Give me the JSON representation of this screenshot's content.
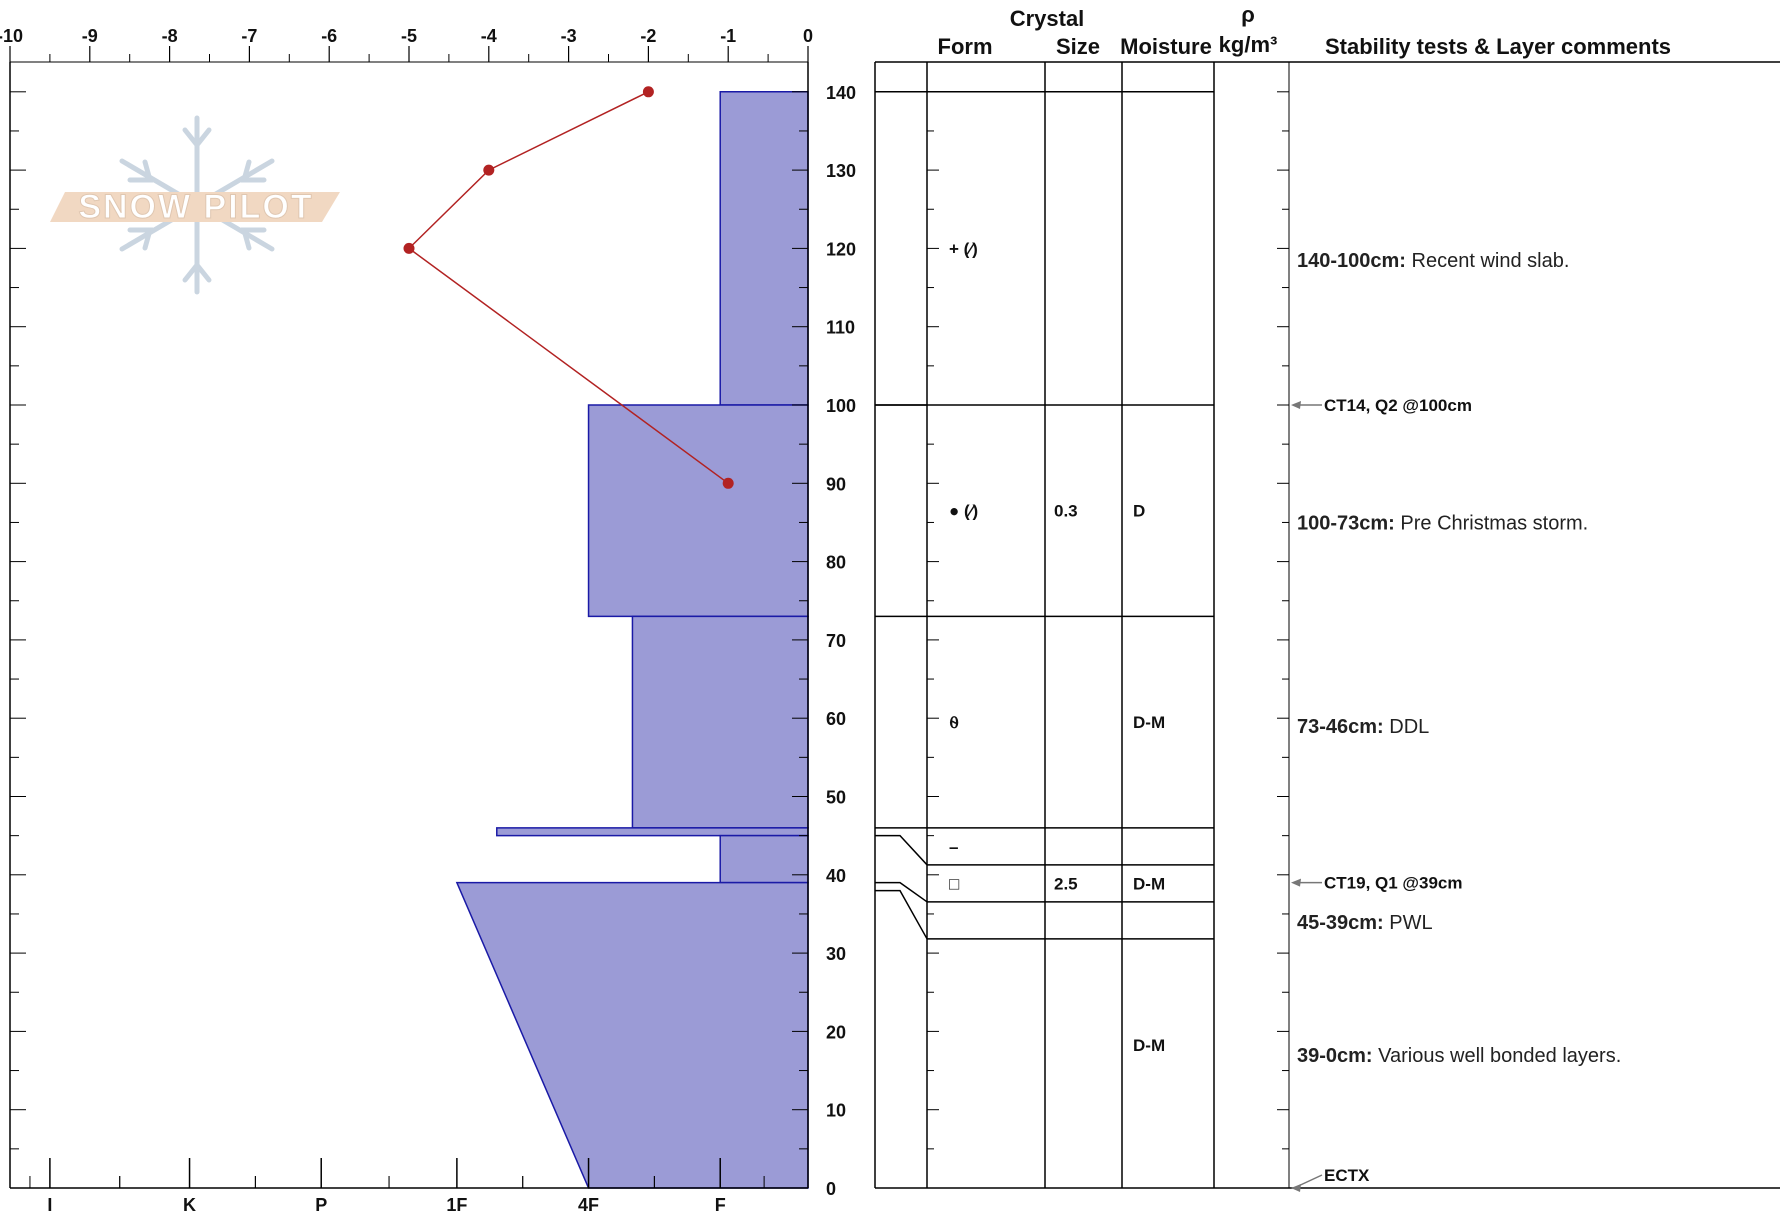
{
  "chart_data": {
    "type": "snow-profile",
    "title": "",
    "top_axis": {
      "xlim": [
        -10,
        0
      ],
      "ticks": [
        "-10",
        "-9",
        "-8",
        "-7",
        "-6",
        "-5",
        "-4",
        "-3",
        "-2",
        "-1",
        "0"
      ]
    },
    "bottom_axis": {
      "labels": [
        "I",
        "K",
        "P",
        "1F",
        "4F",
        "F"
      ],
      "hardness_positions": [
        -9.5,
        -7.75,
        -6.1,
        -4.4,
        -2.75,
        -1.1
      ]
    },
    "y_axis": {
      "ylim": [
        0,
        145
      ],
      "ticks": [
        "140",
        "130",
        "120",
        "110",
        "100",
        "90",
        "80",
        "70",
        "60",
        "50",
        "40",
        "30",
        "20",
        "10",
        "0"
      ]
    },
    "temperature_profile": {
      "series_color": "#b22222",
      "points": [
        {
          "depth": 140,
          "temp": -2
        },
        {
          "depth": 130,
          "temp": -4
        },
        {
          "depth": 120,
          "temp": -5
        },
        {
          "depth": 90,
          "temp": -1
        }
      ]
    },
    "hardness_layers": [
      {
        "top": 140,
        "bottom": 100,
        "hardness_top": -1.1,
        "hardness_bottom": -1.1
      },
      {
        "top": 100,
        "bottom": 73,
        "hardness_top": -2.75,
        "hardness_bottom": -2.75
      },
      {
        "top": 73,
        "bottom": 46,
        "hardness_top": -2.2,
        "hardness_bottom": -2.2
      },
      {
        "top": 46,
        "bottom": 45,
        "hardness_top": -3.9,
        "hardness_bottom": -3.9
      },
      {
        "top": 45,
        "bottom": 39,
        "hardness_top": -1.1,
        "hardness_bottom": -1.1
      },
      {
        "top": 39,
        "bottom": 0,
        "hardness_top": -4.4,
        "hardness_bottom": -2.75
      }
    ],
    "fill_color": "#9b9bd6",
    "edge_color": "#1a1aa6",
    "headers": {
      "crystal": "Crystal",
      "form": "Form",
      "size": "Size",
      "moisture": "Moisture",
      "rho": "ρ",
      "density_unit": "kg/m³",
      "comments": "Stability tests & Layer comments"
    },
    "layer_table": [
      {
        "top": 140,
        "bottom": 100,
        "label_depth": 120,
        "form": "+ (⁄)",
        "size": "",
        "moisture": ""
      },
      {
        "top": 100,
        "bottom": 73,
        "label_depth": 87,
        "form": "● (⁄)",
        "size": "0.3",
        "moisture": "D"
      },
      {
        "top": 73,
        "bottom": 46,
        "label_depth": 60,
        "form": "⍬",
        "size": "",
        "moisture": "D-M"
      },
      {
        "top": 46,
        "bottom": 45,
        "label_depth": 45,
        "form": "–",
        "size": "",
        "moisture": ""
      },
      {
        "top": 45,
        "bottom": 39,
        "label_depth": 40,
        "form": "□",
        "size": "2.5",
        "moisture": "D-M"
      },
      {
        "top": 39,
        "bottom": 0,
        "label_depth": 19,
        "form": "",
        "size": "",
        "moisture": "D-M"
      }
    ],
    "comments": [
      {
        "depth": 118.5,
        "bold": "140-100cm:",
        "text": " Recent wind slab."
      },
      {
        "depth": 85,
        "bold": "100-73cm:",
        "text": " Pre Christmas storm."
      },
      {
        "depth": 59,
        "bold": "73-46cm:",
        "text": " DDL"
      },
      {
        "depth": 34,
        "bold": "45-39cm:",
        "text": " PWL"
      },
      {
        "depth": 17,
        "bold": "39-0cm:",
        "text": " Various well bonded layers."
      }
    ],
    "stability_tests": [
      {
        "depth": 100,
        "label": "CT14, Q2 @100cm"
      },
      {
        "depth": 39,
        "label": "CT19, Q1 @39cm"
      },
      {
        "depth": 0,
        "label": "ECTX"
      }
    ]
  },
  "watermark": {
    "text": "SNOW PILOT"
  }
}
